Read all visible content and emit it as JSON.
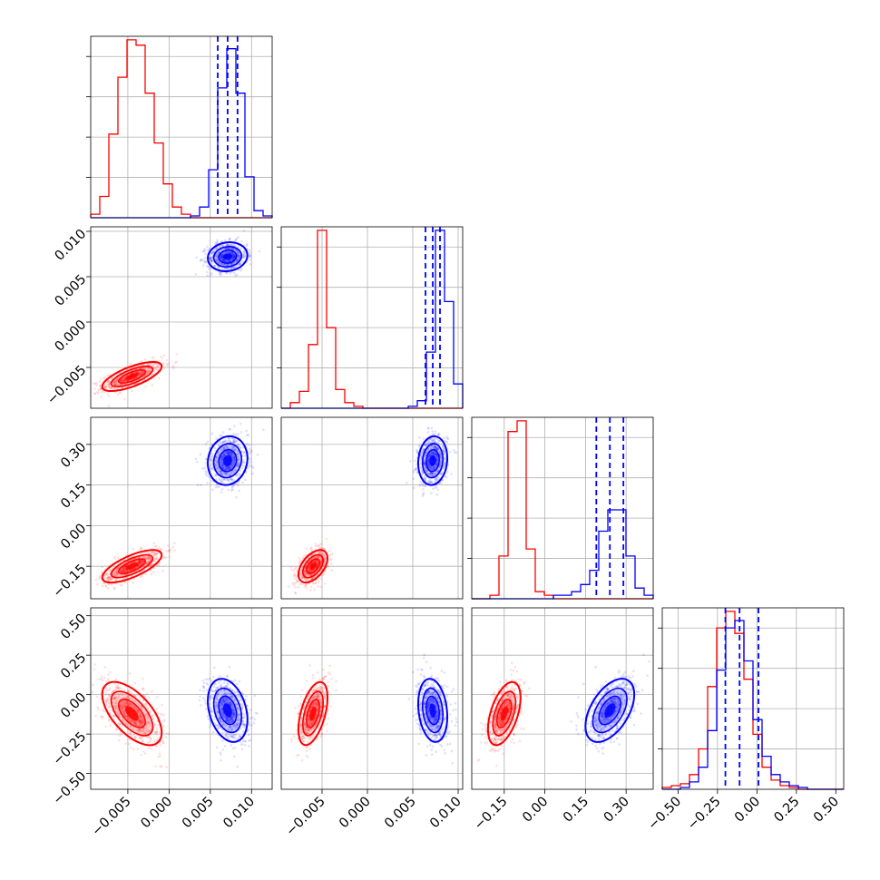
{
  "chart_data": {
    "type": "scatter",
    "title": "",
    "grid": true,
    "colors": {
      "series_a": "#ff0000",
      "series_b": "#0000ff",
      "quantile_line": "#0000ff"
    },
    "parameters": [
      {
        "range": [
          -0.0095,
          0.0125
        ],
        "ticks": [
          -0.005,
          0.0,
          0.005,
          0.01
        ],
        "tick_labels": [
          "−0.005",
          "0.000",
          "0.005",
          "0.010"
        ]
      },
      {
        "range": [
          -0.0095,
          0.0105
        ],
        "ticks": [
          -0.005,
          0.0,
          0.005,
          0.01
        ],
        "tick_labels": [
          "−0.005",
          "0.000",
          "0.005",
          "0.010"
        ]
      },
      {
        "range": [
          -0.27,
          0.4
        ],
        "ticks": [
          -0.15,
          0.0,
          0.15,
          0.3
        ],
        "tick_labels": [
          "−0.15",
          "0.00",
          "0.15",
          "0.30"
        ]
      },
      {
        "range": [
          -0.6,
          0.55
        ],
        "ticks": [
          -0.5,
          -0.25,
          0.0,
          0.25,
          0.5
        ],
        "tick_labels": [
          "−0.50",
          "−0.25",
          "0.00",
          "0.25",
          "0.50"
        ]
      }
    ],
    "series": [
      {
        "color": "#ff0000",
        "mean": [
          -0.0045,
          -0.006,
          -0.15,
          -0.12
        ],
        "std": [
          0.0018,
          0.0008,
          0.03,
          0.1
        ],
        "corr": [
          [
            0,
            0.7
          ],
          [
            0.7,
            0
          ]
        ]
      },
      {
        "color": "#0000ff",
        "mean": [
          0.0071,
          0.0072,
          0.24,
          -0.1
        ],
        "std": [
          0.0012,
          0.0008,
          0.045,
          0.1
        ]
      }
    ],
    "correlations": {
      "series_a": {
        "0-1": 0.7,
        "0-2": 0.7,
        "0-3": -0.6,
        "1-2": 0.5,
        "1-3": 0.5,
        "2-3": 0.5
      },
      "series_b": {
        "0-1": 0.1,
        "0-2": 0.1,
        "0-3": -0.3,
        "1-2": 0.1,
        "1-3": -0.2,
        "2-3": 0.5
      }
    },
    "quantiles_series_b": [
      [
        0.0059,
        0.0071,
        0.0083
      ],
      [
        0.0064,
        0.0072,
        0.008
      ],
      [
        0.19,
        0.24,
        0.29
      ],
      [
        -0.2,
        -0.11,
        0.01
      ]
    ],
    "histograms": [
      {
        "bins": [
          -0.0095,
          -0.0084,
          -0.0073,
          -0.0062,
          -0.0051,
          -0.004,
          -0.0029,
          -0.0018,
          -0.0007,
          0.0004,
          0.0015,
          0.0026,
          0.0037,
          0.0048,
          0.0059,
          0.007,
          0.0081,
          0.0092,
          0.0103,
          0.0114,
          0.0125
        ],
        "series_a": [
          2,
          12,
          47,
          79,
          100,
          97,
          70,
          42,
          19,
          6,
          2,
          0,
          0,
          0,
          0,
          0,
          0,
          0,
          0,
          0
        ],
        "series_b": [
          0,
          0,
          0,
          0,
          0,
          0,
          0,
          0,
          0,
          0,
          0,
          1,
          6,
          27,
          73,
          95,
          70,
          23,
          4,
          1
        ]
      },
      {
        "bins": [
          -0.0095,
          -0.0085,
          -0.0075,
          -0.0065,
          -0.0055,
          -0.0045,
          -0.0035,
          -0.0025,
          -0.0015,
          -0.0005,
          0.0005,
          0.0015,
          0.0025,
          0.0035,
          0.0045,
          0.0055,
          0.0065,
          0.0075,
          0.0085,
          0.0095,
          0.0105
        ],
        "series_a": [
          0,
          3,
          9,
          34,
          95,
          43,
          10,
          3,
          1,
          0,
          0,
          0,
          0,
          0,
          0,
          0,
          0,
          0,
          0,
          0
        ],
        "series_b": [
          0,
          0,
          0,
          0,
          0,
          0,
          0,
          0,
          0,
          0,
          0,
          0,
          0,
          0,
          1,
          4,
          30,
          95,
          57,
          13
        ]
      },
      {
        "bins": [
          -0.27,
          -0.2365,
          -0.203,
          -0.1695,
          -0.136,
          -0.1025,
          -0.069,
          -0.0355,
          -0.002,
          0.0315,
          0.065,
          0.0985,
          0.132,
          0.1655,
          0.199,
          0.2325,
          0.266,
          0.2995,
          0.333,
          0.3665,
          0.4
        ],
        "series_a": [
          0,
          0,
          1,
          12,
          47,
          50,
          14,
          2,
          1,
          0,
          0,
          0,
          0,
          0,
          0,
          0,
          0,
          0,
          0,
          0
        ],
        "series_b": [
          0,
          0,
          0,
          0,
          0,
          0,
          0,
          0,
          0,
          1,
          1,
          2,
          4,
          8,
          19,
          25,
          25,
          12,
          3,
          1
        ]
      },
      {
        "bins": [
          -0.6,
          -0.5425,
          -0.485,
          -0.4275,
          -0.37,
          -0.3125,
          -0.255,
          -0.1975,
          -0.14,
          -0.0825,
          -0.025,
          0.0325,
          0.09,
          0.1475,
          0.205,
          0.2625,
          0.32,
          0.3775,
          0.435,
          0.4925,
          0.55
        ],
        "series_a": [
          1,
          2,
          3,
          8,
          22,
          56,
          88,
          97,
          85,
          60,
          30,
          12,
          5,
          2,
          1,
          0,
          0,
          0,
          0,
          0
        ],
        "series_b": [
          0,
          0,
          1,
          4,
          12,
          32,
          65,
          88,
          92,
          70,
          38,
          18,
          8,
          4,
          2,
          1,
          0,
          0,
          0,
          0
        ]
      }
    ]
  }
}
